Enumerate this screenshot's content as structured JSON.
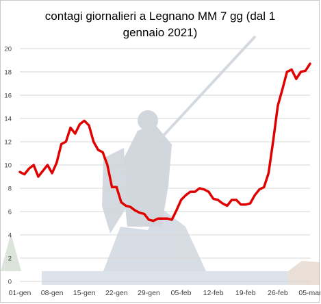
{
  "chart_data": {
    "type": "line",
    "title_lines": [
      "contagi giornalieri a Legnano MM 7 gg (dal 1",
      "gennaio 2021)"
    ],
    "xlabel": "",
    "ylabel": "",
    "ylim": [
      0,
      20
    ],
    "yticks": [
      0,
      2,
      4,
      6,
      8,
      10,
      12,
      14,
      16,
      18,
      20
    ],
    "x_tick_labels": [
      "01-gen",
      "08-gen",
      "15-gen",
      "22-gen",
      "29-gen",
      "05-feb",
      "12-feb",
      "19-feb",
      "26-feb",
      "05-mar"
    ],
    "x_tick_day_index": [
      0,
      7,
      14,
      21,
      28,
      35,
      42,
      49,
      56,
      63
    ],
    "grid": true,
    "legend": "none",
    "series": [
      {
        "color": "#e00000",
        "values": [
          9.4,
          9.2,
          9.7,
          10.0,
          9.0,
          9.5,
          10.0,
          9.3,
          10.2,
          11.8,
          12.0,
          13.2,
          12.7,
          13.5,
          13.8,
          13.4,
          12.0,
          11.3,
          11.1,
          10.0,
          8.1,
          8.1,
          6.8,
          6.5,
          6.4,
          6.1,
          5.9,
          5.8,
          5.3,
          5.2,
          5.4,
          5.4,
          5.4,
          5.3,
          6.1,
          7.0,
          7.4,
          7.7,
          7.7,
          8.0,
          7.9,
          7.7,
          7.1,
          7.0,
          6.7,
          6.5,
          7.0,
          7.0,
          6.6,
          6.6,
          6.7,
          7.4,
          7.9,
          8.1,
          9.3,
          12.1,
          15.1,
          16.5,
          18.0,
          18.2,
          17.4,
          18.0,
          18.1,
          18.7
        ]
      }
    ],
    "colors": {
      "line": "#e00000",
      "grid": "#d4d4d4",
      "axis_text": "#404040"
    }
  }
}
